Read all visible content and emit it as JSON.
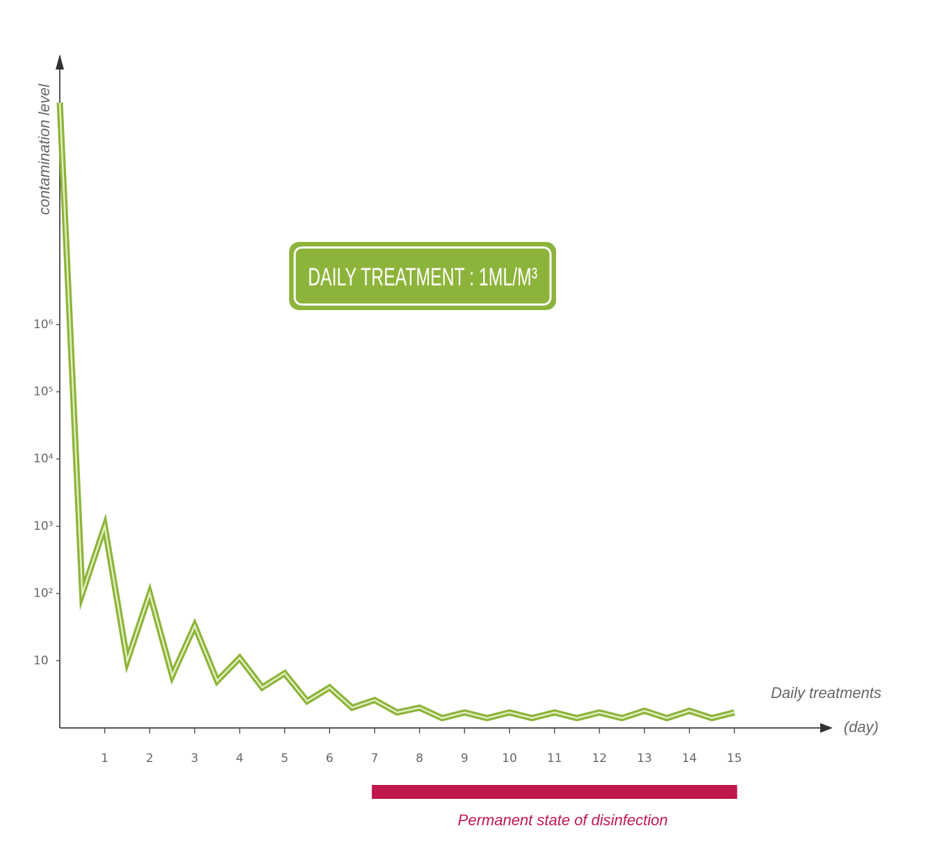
{
  "chart_data": {
    "type": "line",
    "log_y": true,
    "y_label": "contamination level",
    "x_label": "Daily treatments",
    "x_unit": "(day)",
    "annotation": "DAILY TREATMENT : 1ML/M³",
    "highlight": {
      "label": "Permanent state of disinfection",
      "range": [
        7,
        15
      ],
      "color": "#c0174c"
    },
    "xlim": [
      0,
      17
    ],
    "xticks": [
      1,
      2,
      3,
      4,
      5,
      6,
      7,
      8,
      9,
      10,
      11,
      12,
      13,
      14,
      15
    ],
    "ylim": [
      1,
      10000000000
    ],
    "yticks": [
      10,
      {
        "value": 100,
        "label": "10²"
      },
      {
        "value": 1000,
        "label": "10³"
      },
      {
        "value": 10000,
        "label": "10⁴"
      },
      {
        "value": 100000,
        "label": "10⁵"
      },
      {
        "value": 1000000,
        "label": "10⁶"
      }
    ],
    "x": [
      0,
      0.5,
      1,
      1.5,
      2,
      2.5,
      3,
      3.5,
      4,
      4.5,
      5,
      5.5,
      6,
      6.5,
      7,
      7.5,
      8,
      8.5,
      9,
      9.5,
      10,
      10.5,
      11,
      11.5,
      12,
      12.5,
      13,
      13.5,
      14,
      14.5,
      15
    ],
    "values": [
      2000000000,
      100,
      1000,
      10,
      100,
      6,
      33,
      5,
      11,
      4,
      6.5,
      2.5,
      4,
      2,
      2.6,
      1.7,
      2,
      1.4,
      1.7,
      1.4,
      1.7,
      1.4,
      1.7,
      1.4,
      1.7,
      1.4,
      1.8,
      1.4,
      1.8,
      1.4,
      1.7
    ],
    "color": "#8db43a"
  }
}
